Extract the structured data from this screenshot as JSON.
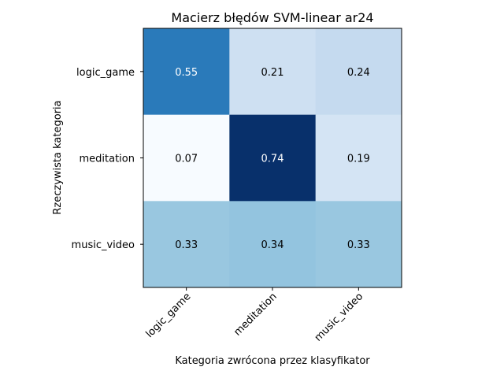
{
  "chart_data": {
    "type": "heatmap",
    "title": "Macierz błędów SVM-linear ar24",
    "xlabel": "Kategoria zwrócona przez klasyfikator",
    "ylabel": "Rzeczywista kategoria",
    "x_categories": [
      "logic_game",
      "meditation",
      "music_video"
    ],
    "y_categories": [
      "logic_game",
      "meditation",
      "music_video"
    ],
    "values": [
      [
        0.55,
        0.21,
        0.24
      ],
      [
        0.07,
        0.74,
        0.19
      ],
      [
        0.33,
        0.34,
        0.33
      ]
    ],
    "value_labels": [
      [
        "0.55",
        "0.21",
        "0.24"
      ],
      [
        "0.07",
        "0.74",
        "0.19"
      ],
      [
        "0.33",
        "0.34",
        "0.33"
      ]
    ],
    "colormap": "Blues",
    "vrange": [
      0.07,
      0.74
    ]
  }
}
